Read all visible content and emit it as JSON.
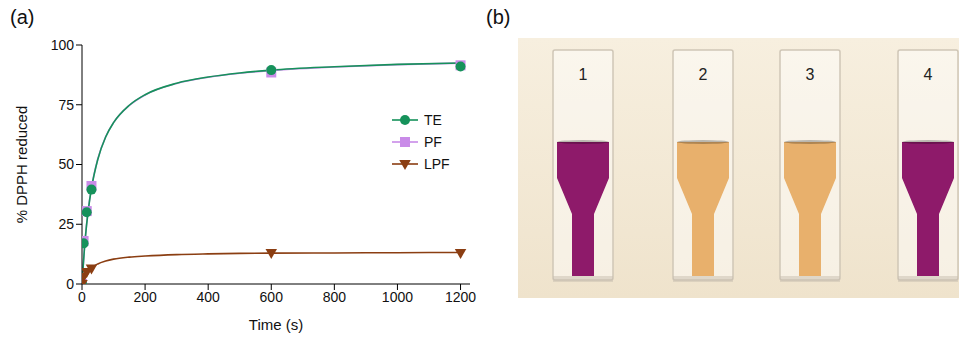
{
  "chart_data": {
    "type": "line",
    "panel_label": "(a)",
    "x_label": "Time (s)",
    "y_label": "% DPPH reduced",
    "xlim": [
      0,
      1230
    ],
    "xticks": [
      0,
      200,
      400,
      600,
      800,
      1000,
      1200
    ],
    "ylim": [
      0,
      100
    ],
    "yticks": [
      0,
      25,
      50,
      75,
      100
    ],
    "grid": false,
    "legend": "right",
    "series": [
      {
        "name": "PF",
        "color": "#c98be8",
        "marker": "square",
        "x": [
          0,
          5,
          15,
          30,
          600,
          1200
        ],
        "values": [
          0,
          18,
          30.5,
          41,
          88.5,
          91.5
        ],
        "fit": {
          "x": [
            0,
            10,
            20,
            30,
            50,
            75,
            100,
            150,
            200,
            300,
            400,
            500,
            600,
            800,
            1000,
            1200
          ],
          "values": [
            0,
            18.7,
            31.3,
            40.3,
            52.3,
            61.6,
            67.5,
            74.7,
            79.1,
            83.9,
            86.5,
            88.2,
            89.3,
            90.8,
            91.8,
            92.4
          ]
        }
      },
      {
        "name": "TE",
        "color": "#16925b",
        "marker": "circle",
        "x": [
          0,
          5,
          15,
          30,
          600,
          1200
        ],
        "values": [
          0,
          17,
          30,
          39.5,
          89.5,
          91
        ],
        "fit": {
          "x": [
            0,
            10,
            20,
            30,
            50,
            75,
            100,
            150,
            200,
            300,
            400,
            500,
            600,
            800,
            1000,
            1200
          ],
          "values": [
            0,
            18.5,
            31,
            40,
            52.1,
            61.5,
            67.5,
            74.8,
            79.2,
            84,
            86.6,
            88.3,
            89.5,
            90.9,
            91.9,
            92.5
          ]
        }
      },
      {
        "name": "LPF",
        "color": "#8b3e12",
        "marker": "triangle-down",
        "x": [
          0,
          5,
          15,
          30,
          600,
          1200
        ],
        "values": [
          0,
          3,
          5,
          6.5,
          13,
          13
        ],
        "fit": {
          "x": [
            0,
            10,
            20,
            30,
            50,
            75,
            100,
            150,
            200,
            300,
            400,
            500,
            600,
            800,
            1000,
            1200
          ],
          "values": [
            0,
            3.4,
            5.4,
            6.75,
            8.4,
            9.6,
            10.4,
            11.25,
            11.7,
            12.3,
            12.6,
            12.8,
            12.9,
            13,
            13.1,
            13.2
          ]
        }
      }
    ]
  },
  "photo": {
    "panel_label": "(b)",
    "cuvettes": [
      {
        "label": "1",
        "color": "#8e1a6a"
      },
      {
        "label": "2",
        "color": "#e8b06c"
      },
      {
        "label": "3",
        "color": "#e8b06c"
      },
      {
        "label": "4",
        "color": "#8e1a6a"
      }
    ]
  }
}
